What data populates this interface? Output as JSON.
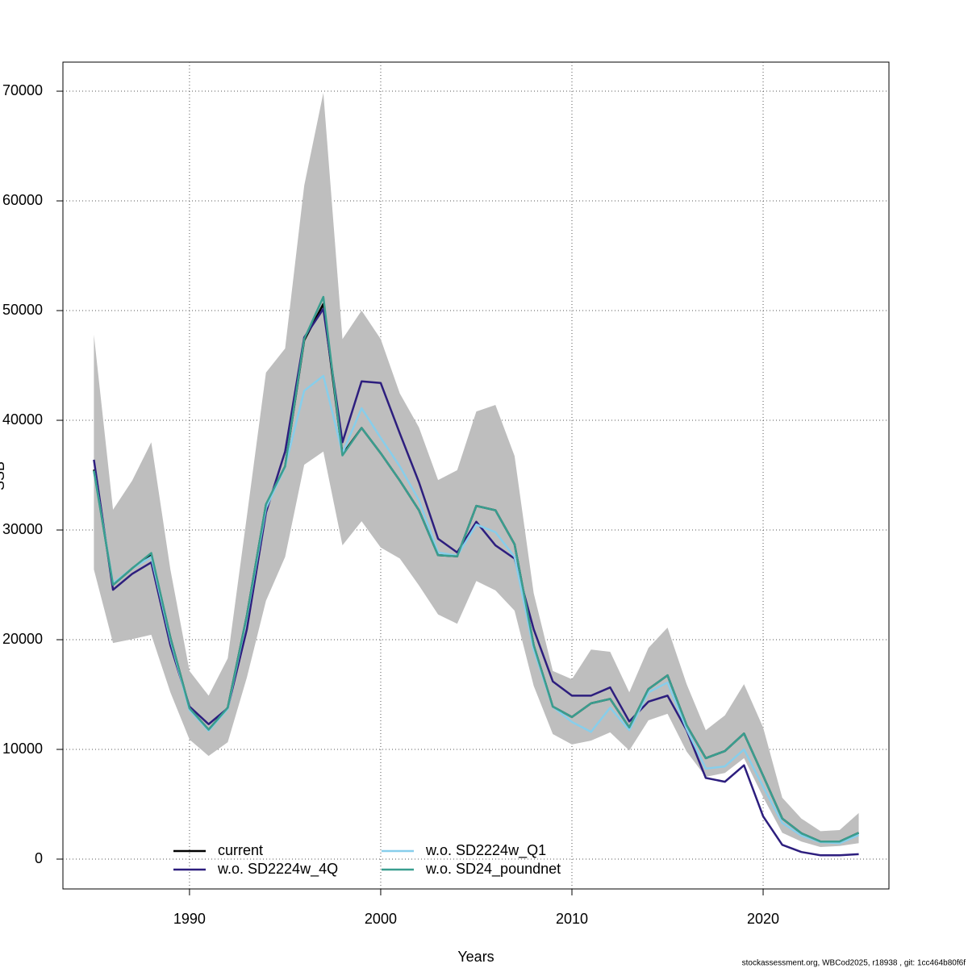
{
  "chart_data": {
    "type": "line",
    "x_label": "Years",
    "y_label": "SSB",
    "footnote": "stockassessment.org, WBCod2025, r18938 , git: 1cc464b80f6f",
    "x": [
      1985,
      1986,
      1987,
      1988,
      1989,
      1990,
      1991,
      1992,
      1993,
      1994,
      1995,
      1996,
      1997,
      1998,
      1999,
      2000,
      2001,
      2002,
      2003,
      2004,
      2005,
      2006,
      2007,
      2008,
      2009,
      2010,
      2011,
      2012,
      2013,
      2014,
      2015,
      2016,
      2017,
      2018,
      2019,
      2020,
      2021,
      2022,
      2023,
      2024,
      2025
    ],
    "band": {
      "color": "#bebebe",
      "upper": [
        47800,
        31850,
        34500,
        38000,
        26400,
        17150,
        14900,
        18300,
        31250,
        44350,
        46550,
        61400,
        69850,
        47400,
        50000,
        47400,
        42450,
        39350,
        34550,
        35450,
        40800,
        41400,
        36750,
        24250,
        17150,
        16400,
        19100,
        18900,
        15200,
        19250,
        21100,
        15950,
        11750,
        13100,
        15950,
        12000,
        5600,
        3700,
        2550,
        2650,
        4200
      ],
      "lower": [
        26400,
        19700,
        20050,
        20450,
        15200,
        10900,
        9400,
        10650,
        16550,
        23550,
        27550,
        35950,
        37150,
        28600,
        30800,
        28400,
        27400,
        24950,
        22300,
        21450,
        25350,
        24500,
        22650,
        15800,
        11400,
        10450,
        10800,
        11550,
        9900,
        12650,
        13250,
        9800,
        7500,
        7850,
        9200,
        5650,
        2400,
        1600,
        1100,
        1200,
        1450
      ]
    },
    "series": [
      {
        "name": "current",
        "color": "#000000",
        "values": [
          35500,
          25000,
          26500,
          27800,
          20200,
          13750,
          11800,
          13800,
          22200,
          32300,
          35800,
          47300,
          50600,
          36900,
          39300,
          37000,
          34500,
          31800,
          27700,
          27600,
          32200,
          31800,
          28700,
          19500,
          13900,
          12950,
          14200,
          14600,
          12000,
          15500,
          16750,
          12200,
          9200,
          9850,
          11450,
          7600,
          3700,
          2350,
          1600,
          1600,
          2400
        ]
      },
      {
        "name": "w.o. SD2224w_4Q",
        "color": "#2d1e7e",
        "values": [
          36400,
          24550,
          26000,
          27050,
          19500,
          13900,
          12300,
          13750,
          20950,
          31600,
          37150,
          47550,
          50150,
          38000,
          43550,
          43400,
          38800,
          34350,
          29200,
          27950,
          30750,
          28600,
          27400,
          20950,
          16200,
          14900,
          14900,
          15650,
          12550,
          14350,
          14900,
          11750,
          7400,
          7050,
          8550,
          3900,
          1300,
          650,
          350,
          350,
          450
        ]
      },
      {
        "name": "w.o. SD2224w_Q1",
        "color": "#87ceeb",
        "values": [
          35400,
          25150,
          26500,
          27550,
          20000,
          13600,
          11700,
          13700,
          22050,
          32000,
          35750,
          42700,
          44050,
          37000,
          41100,
          38400,
          35800,
          32700,
          27950,
          27650,
          30500,
          29800,
          27550,
          19100,
          13900,
          12500,
          11600,
          13800,
          11750,
          15200,
          16100,
          11850,
          8250,
          8450,
          10000,
          6600,
          3300,
          2150,
          1550,
          1450,
          2200
        ]
      },
      {
        "name": "w.o. SD24_poundnet",
        "color": "#3a9e8f",
        "values": [
          35400,
          25000,
          26500,
          27900,
          20200,
          13750,
          11800,
          13800,
          22200,
          32350,
          35800,
          47400,
          51250,
          36800,
          39300,
          37000,
          34500,
          31800,
          27700,
          27600,
          32200,
          31800,
          28700,
          19500,
          13900,
          12950,
          14200,
          14600,
          12000,
          15500,
          16750,
          12200,
          9200,
          9850,
          11450,
          7600,
          3700,
          2350,
          1600,
          1600,
          2400
        ]
      }
    ],
    "xlim": [
      1983.38,
      2026.58
    ],
    "ylim": [
      -2720,
      72650
    ],
    "xticks": [
      1990,
      2000,
      2010,
      2020
    ],
    "yticks": [
      0,
      10000,
      20000,
      30000,
      40000,
      50000,
      60000,
      70000
    ],
    "grid": true
  }
}
